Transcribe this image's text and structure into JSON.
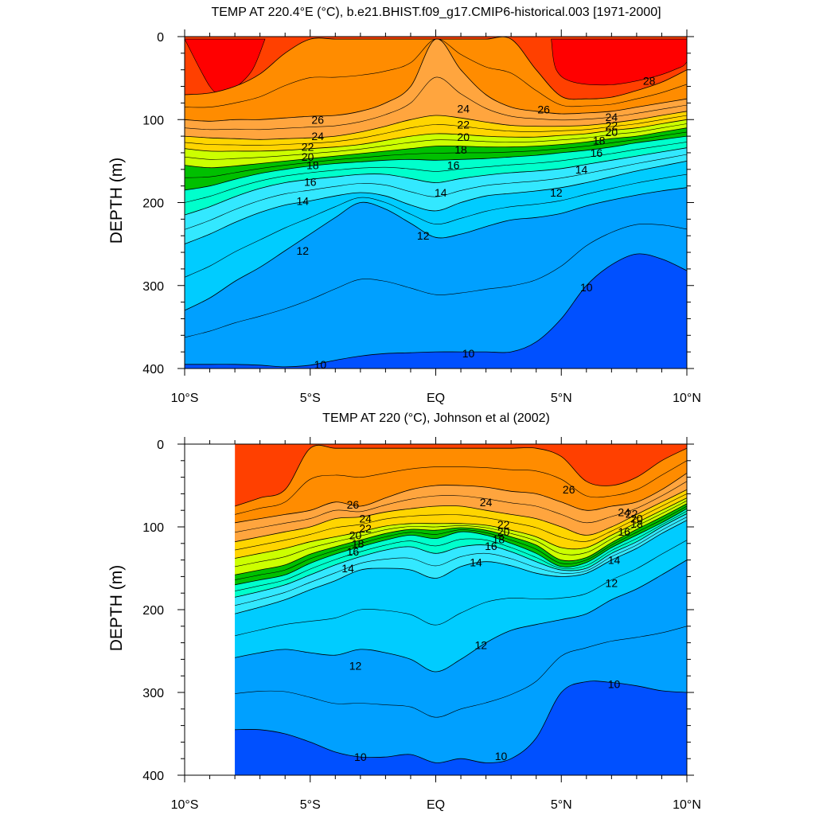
{
  "chart_data": [
    {
      "type": "contour",
      "title": "TEMP AT 220.4°E (°C), b.e21.BHIST.f09_g17.CMIP6-historical.003 [1971-2000]",
      "ylabel": "DEPTH (m)",
      "xlabel": "",
      "xlim": [
        -10,
        10
      ],
      "ylim": [
        0,
        400
      ],
      "y_inverted": true,
      "x_ticks": [
        -10,
        -5,
        0,
        5,
        10
      ],
      "x_tick_labels": [
        "10°S",
        "5°S",
        "EQ",
        "5°N",
        "10°N"
      ],
      "y_ticks": [
        0,
        100,
        200,
        300,
        400
      ],
      "y_tick_labels": [
        "0",
        "100",
        "200",
        "300",
        "400"
      ],
      "x": [
        -10,
        -9,
        -8,
        -7,
        -6,
        -5,
        -4,
        -3,
        -2,
        -1,
        0,
        1,
        2,
        3,
        4,
        5,
        6,
        7,
        8,
        9,
        10
      ],
      "isotherms": [
        {
          "level": 28,
          "depth": [
            70,
            68,
            60,
            45,
            20,
            3,
            3,
            3,
            3,
            3,
            3,
            3,
            3,
            3,
            40,
            72,
            75,
            73,
            65,
            55,
            40
          ]
        },
        {
          "level": 26,
          "depth": [
            100,
            102,
            100,
            100,
            98,
            96,
            95,
            90,
            80,
            60,
            3,
            40,
            70,
            85,
            90,
            93,
            92,
            90,
            85,
            80,
            75
          ]
        },
        {
          "level": 24,
          "depth": [
            120,
            122,
            123,
            124,
            123,
            122,
            120,
            115,
            108,
            100,
            95,
            98,
            103,
            107,
            108,
            108,
            107,
            104,
            100,
            95,
            90
          ]
        },
        {
          "level": 22,
          "depth": [
            135,
            138,
            138,
            138,
            137,
            135,
            133,
            130,
            125,
            120,
            117,
            118,
            120,
            121,
            121,
            119,
            117,
            113,
            110,
            105,
            100
          ]
        },
        {
          "level": 20,
          "depth": [
            155,
            158,
            156,
            153,
            150,
            147,
            144,
            141,
            138,
            135,
            132,
            132,
            133,
            133,
            132,
            130,
            127,
            123,
            120,
            115,
            110
          ]
        },
        {
          "level": 18,
          "depth": [
            185,
            180,
            172,
            165,
            160,
            156,
            153,
            151,
            149,
            148,
            149,
            148,
            147,
            145,
            143,
            140,
            137,
            133,
            128,
            124,
            120
          ]
        },
        {
          "level": 16,
          "depth": [
            215,
            205,
            193,
            183,
            176,
            172,
            169,
            166,
            166,
            171,
            176,
            171,
            167,
            164,
            162,
            159,
            154,
            149,
            144,
            139,
            134
          ]
        },
        {
          "level": 14,
          "depth": [
            250,
            238,
            224,
            212,
            203,
            198,
            192,
            188,
            192,
            203,
            210,
            200,
            192,
            189,
            186,
            182,
            176,
            169,
            162,
            156,
            150
          ]
        },
        {
          "level": 12,
          "depth": [
            330,
            315,
            295,
            278,
            258,
            238,
            218,
            200,
            208,
            225,
            242,
            238,
            229,
            221,
            218,
            213,
            204,
            197,
            191,
            186,
            182
          ]
        },
        {
          "level": 10,
          "depth": [
            395,
            395,
            395,
            396,
            398,
            396,
            390,
            385,
            382,
            381,
            380,
            380,
            380,
            380,
            368,
            340,
            300,
            275,
            262,
            268,
            282
          ]
        }
      ],
      "contour_labels": [
        {
          "text": "28",
          "x": 8.5,
          "depth": 53
        },
        {
          "text": "26",
          "x": -4.7,
          "depth": 100
        },
        {
          "text": "26",
          "x": 4.3,
          "depth": 88
        },
        {
          "text": "24",
          "x": -4.7,
          "depth": 120
        },
        {
          "text": "24",
          "x": 1.1,
          "depth": 87
        },
        {
          "text": "24",
          "x": 7.0,
          "depth": 97
        },
        {
          "text": "22",
          "x": -5.1,
          "depth": 133
        },
        {
          "text": "22",
          "x": 1.1,
          "depth": 106
        },
        {
          "text": "22",
          "x": 7.0,
          "depth": 107
        },
        {
          "text": "20",
          "x": -5.1,
          "depth": 145
        },
        {
          "text": "20",
          "x": 1.1,
          "depth": 121
        },
        {
          "text": "20",
          "x": 7.0,
          "depth": 115
        },
        {
          "text": "18",
          "x": -4.9,
          "depth": 155
        },
        {
          "text": "18",
          "x": 1.0,
          "depth": 136
        },
        {
          "text": "18",
          "x": 6.5,
          "depth": 125
        },
        {
          "text": "16",
          "x": -5.0,
          "depth": 175
        },
        {
          "text": "16",
          "x": 0.7,
          "depth": 155
        },
        {
          "text": "16",
          "x": 6.4,
          "depth": 140
        },
        {
          "text": "14",
          "x": -5.3,
          "depth": 198
        },
        {
          "text": "14",
          "x": 0.2,
          "depth": 188
        },
        {
          "text": "14",
          "x": 5.8,
          "depth": 160
        },
        {
          "text": "12",
          "x": -5.3,
          "depth": 258
        },
        {
          "text": "12",
          "x": -0.5,
          "depth": 240
        },
        {
          "text": "12",
          "x": 4.8,
          "depth": 188
        },
        {
          "text": "10",
          "x": 6.0,
          "depth": 302
        },
        {
          "text": "10",
          "x": -4.6,
          "depth": 395
        },
        {
          "text": "10",
          "x": 1.3,
          "depth": 382
        }
      ]
    },
    {
      "type": "contour",
      "title": "TEMP AT 220 (°C), Johnson et al (2002)",
      "ylabel": "DEPTH (m)",
      "xlabel": "",
      "xlim": [
        -10,
        10
      ],
      "ylim": [
        0,
        400
      ],
      "y_inverted": true,
      "data_xlim": [
        -8,
        10
      ],
      "x_ticks": [
        -10,
        -5,
        0,
        5,
        10
      ],
      "x_tick_labels": [
        "10°S",
        "5°S",
        "EQ",
        "5°N",
        "10°N"
      ],
      "y_ticks": [
        0,
        100,
        200,
        300,
        400
      ],
      "y_tick_labels": [
        "0",
        "100",
        "200",
        "300",
        "400"
      ],
      "x": [
        -8,
        -7,
        -6,
        -5,
        -4,
        -3,
        -2,
        -1,
        0,
        1,
        2,
        3,
        4,
        5,
        6,
        7,
        8,
        9,
        10
      ],
      "isotherms": [
        {
          "level": 28,
          "depth": [
            75,
            65,
            55,
            5,
            5,
            5,
            5,
            5,
            5,
            5,
            5,
            5,
            5,
            15,
            45,
            50,
            40,
            20,
            5
          ]
        },
        {
          "level": 26,
          "depth": [
            95,
            90,
            85,
            80,
            70,
            75,
            65,
            55,
            50,
            50,
            52,
            57,
            60,
            70,
            80,
            75,
            70,
            55,
            35
          ]
        },
        {
          "level": 24,
          "depth": [
            118,
            112,
            106,
            100,
            90,
            88,
            82,
            78,
            75,
            75,
            80,
            85,
            90,
            100,
            110,
            100,
            85,
            70,
            55
          ]
        },
        {
          "level": 22,
          "depth": [
            138,
            132,
            126,
            118,
            112,
            106,
            99,
            96,
            96,
            96,
            98,
            104,
            112,
            125,
            125,
            110,
            95,
            80,
            65
          ]
        },
        {
          "level": 20,
          "depth": [
            158,
            152,
            146,
            133,
            124,
            116,
            108,
            103,
            104,
            101,
            104,
            112,
            122,
            140,
            137,
            119,
            103,
            88,
            72
          ]
        },
        {
          "level": 18,
          "depth": [
            170,
            164,
            158,
            144,
            133,
            124,
            116,
            110,
            114,
            106,
            110,
            120,
            132,
            148,
            143,
            125,
            110,
            95,
            78
          ]
        },
        {
          "level": 16,
          "depth": [
            185,
            178,
            170,
            158,
            146,
            136,
            128,
            124,
            132,
            124,
            122,
            130,
            142,
            152,
            150,
            132,
            118,
            100,
            84
          ]
        },
        {
          "level": 14,
          "depth": [
            205,
            197,
            188,
            176,
            165,
            152,
            150,
            152,
            162,
            148,
            142,
            147,
            156,
            160,
            156,
            140,
            126,
            108,
            92
          ]
        },
        {
          "level": 12,
          "depth": [
            258,
            252,
            248,
            252,
            255,
            248,
            252,
            260,
            275,
            260,
            240,
            225,
            218,
            212,
            205,
            188,
            175,
            158,
            140
          ]
        },
        {
          "level": 10,
          "depth": [
            345,
            345,
            350,
            360,
            372,
            378,
            378,
            375,
            385,
            380,
            385,
            380,
            355,
            300,
            287,
            288,
            292,
            298,
            300
          ]
        }
      ],
      "contour_labels": [
        {
          "text": "26",
          "x": -3.3,
          "depth": 73
        },
        {
          "text": "26",
          "x": 5.3,
          "depth": 55
        },
        {
          "text": "24",
          "x": 2.0,
          "depth": 70
        },
        {
          "text": "24",
          "x": -2.8,
          "depth": 90
        },
        {
          "text": "24",
          "x": 7.5,
          "depth": 82
        },
        {
          "text": "22",
          "x": -2.8,
          "depth": 102
        },
        {
          "text": "22",
          "x": 2.7,
          "depth": 97
        },
        {
          "text": "22",
          "x": 7.8,
          "depth": 84
        },
        {
          "text": "20",
          "x": -3.2,
          "depth": 110
        },
        {
          "text": "20",
          "x": 2.7,
          "depth": 106
        },
        {
          "text": "20",
          "x": 8.0,
          "depth": 90
        },
        {
          "text": "18",
          "x": -3.1,
          "depth": 120
        },
        {
          "text": "18",
          "x": 2.5,
          "depth": 115
        },
        {
          "text": "18",
          "x": 8.0,
          "depth": 96
        },
        {
          "text": "16",
          "x": -3.3,
          "depth": 130
        },
        {
          "text": "16",
          "x": 2.2,
          "depth": 123
        },
        {
          "text": "16",
          "x": 7.5,
          "depth": 106
        },
        {
          "text": "14",
          "x": -3.5,
          "depth": 150
        },
        {
          "text": "14",
          "x": 1.6,
          "depth": 143
        },
        {
          "text": "14",
          "x": 7.1,
          "depth": 140
        },
        {
          "text": "12",
          "x": 7.0,
          "depth": 168
        },
        {
          "text": "12",
          "x": 1.8,
          "depth": 243
        },
        {
          "text": "12",
          "x": -3.2,
          "depth": 268
        },
        {
          "text": "10",
          "x": 7.1,
          "depth": 290
        },
        {
          "text": "10",
          "x": -3.0,
          "depth": 378
        },
        {
          "text": "10",
          "x": 2.6,
          "depth": 377
        }
      ]
    }
  ],
  "colors": {
    "deeper_than_10": "#0050ff",
    "10_12": "#00a0ff",
    "12_14": "#00ccff",
    "14_16": "#33e8ff",
    "16_18": "#00ffcc",
    "18_20": "#00c000",
    "20_22": "#ccff00",
    "22_24": "#ffd500",
    "24_26": "#ffa53e",
    "26_28": "#ff8c00",
    "above_28": "#ff4000",
    "above_28_top": "#ff0000"
  }
}
